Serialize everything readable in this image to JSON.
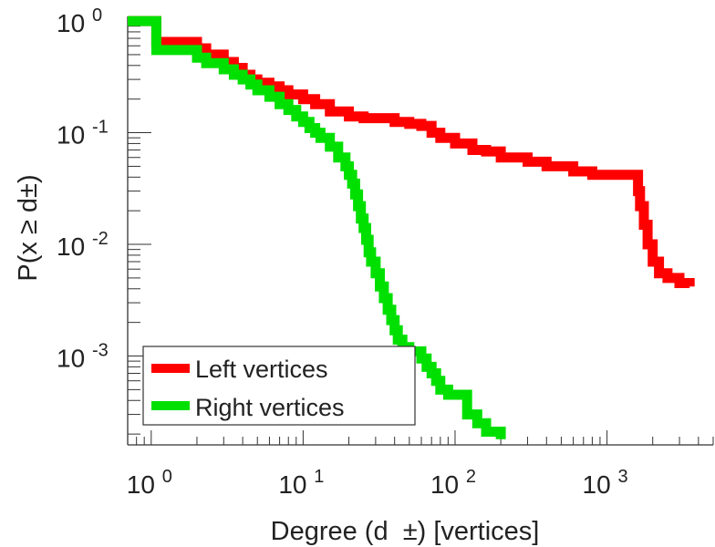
{
  "chart_data": {
    "type": "line",
    "title": "",
    "xlabel": "Degree (d  ±) [vertices]",
    "ylabel": "P(x ≥ d±)",
    "xscale": "log",
    "yscale": "log",
    "xlim": [
      0.7,
      5000
    ],
    "ylim": [
      0.00016,
      1.1
    ],
    "x_tick_labels": [
      {
        "value": 1,
        "base": "10",
        "exp": "0"
      },
      {
        "value": 10,
        "base": "10",
        "exp": "1"
      },
      {
        "value": 100,
        "base": "10",
        "exp": "2"
      },
      {
        "value": 1000,
        "base": "10",
        "exp": "3"
      }
    ],
    "y_tick_labels": [
      {
        "value": 1,
        "base": "10",
        "exp": "0"
      },
      {
        "value": 0.1,
        "base": "10",
        "exp": "-1"
      },
      {
        "value": 0.01,
        "base": "10",
        "exp": "-2"
      },
      {
        "value": 0.001,
        "base": "10",
        "exp": "-3"
      }
    ],
    "grid": false,
    "legend_position": "bottom-left",
    "series": [
      {
        "name": "Left vertices",
        "color": "#ff0000",
        "x": [
          0.7,
          1,
          1.08,
          2,
          2.3,
          3,
          3.5,
          4,
          4.5,
          5,
          6,
          7,
          8,
          10,
          12,
          15,
          20,
          25,
          30,
          40,
          50,
          60,
          70,
          80,
          100,
          130,
          160,
          200,
          300,
          400,
          500,
          600,
          800,
          1000,
          1200,
          1400,
          1600,
          1650,
          1750,
          1850,
          2000,
          2200,
          2500,
          3000,
          3500
        ],
        "y": [
          1,
          1,
          0.65,
          0.57,
          0.5,
          0.43,
          0.38,
          0.33,
          0.3,
          0.28,
          0.26,
          0.24,
          0.22,
          0.2,
          0.18,
          0.155,
          0.14,
          0.135,
          0.135,
          0.125,
          0.12,
          0.115,
          0.1,
          0.09,
          0.08,
          0.07,
          0.068,
          0.06,
          0.055,
          0.05,
          0.05,
          0.045,
          0.042,
          0.042,
          0.042,
          0.042,
          0.03,
          0.022,
          0.015,
          0.01,
          0.007,
          0.0055,
          0.005,
          0.0045,
          0.0042
        ]
      },
      {
        "name": "Right vertices",
        "color": "#00e000",
        "x": [
          0.7,
          1,
          1.08,
          1.3,
          2,
          2.3,
          3,
          3.5,
          4,
          4.5,
          5,
          6,
          7,
          8,
          9,
          10,
          11,
          12,
          13,
          15,
          17,
          19,
          20,
          21,
          22,
          23,
          24,
          25,
          26,
          27,
          28,
          30,
          32,
          34,
          36,
          38,
          40,
          42,
          45,
          50,
          55,
          60,
          65,
          70,
          75,
          80,
          90,
          100,
          120,
          140,
          160,
          200
        ],
        "y": [
          1,
          1,
          0.55,
          0.55,
          0.47,
          0.42,
          0.37,
          0.33,
          0.3,
          0.27,
          0.24,
          0.21,
          0.18,
          0.16,
          0.14,
          0.125,
          0.11,
          0.1,
          0.09,
          0.075,
          0.06,
          0.05,
          0.042,
          0.035,
          0.028,
          0.022,
          0.017,
          0.014,
          0.011,
          0.0085,
          0.007,
          0.0055,
          0.0042,
          0.0033,
          0.0026,
          0.0021,
          0.0017,
          0.0014,
          0.0012,
          0.0011,
          0.0011,
          0.00095,
          0.0008,
          0.0007,
          0.0006,
          0.0005,
          0.00045,
          0.00045,
          0.0003,
          0.00025,
          0.00021,
          0.00018
        ]
      }
    ]
  }
}
